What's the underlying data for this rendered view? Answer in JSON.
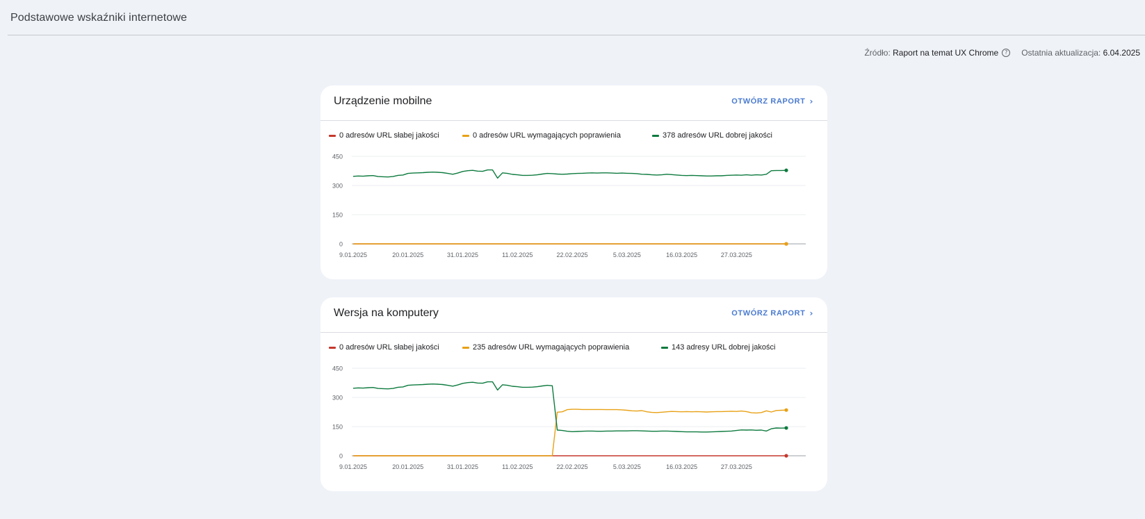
{
  "header": {
    "title": "Podstawowe wskaźniki internetowe",
    "source_label": "Źródło:",
    "source_value": "Raport na temat UX Chrome",
    "updated_label": "Ostatnia aktualizacja:",
    "updated_value": "6.04.2025"
  },
  "colors": {
    "poor": "#c5372c",
    "needs": "#e8a114",
    "good": "#0d7a3e",
    "link": "#4a7bd0"
  },
  "cards": [
    {
      "title": "Urządzenie mobilne",
      "open_label": "OTWÓRZ RAPORT",
      "legend": [
        "0 adresów URL słabej jakości",
        "0 adresów URL wymagających poprawienia",
        "378 adresów URL dobrej jakości"
      ]
    },
    {
      "title": "Wersja na komputery",
      "open_label": "OTWÓRZ RAPORT",
      "legend": [
        "0 adresów URL słabej jakości",
        "235 adresów URL wymagających poprawienia",
        "143 adresy URL dobrej jakości"
      ]
    }
  ],
  "chart_data": [
    {
      "type": "line",
      "x": [
        "9.01.2025",
        "10.01.2025",
        "11.01.2025",
        "12.01.2025",
        "13.01.2025",
        "14.01.2025",
        "15.01.2025",
        "16.01.2025",
        "17.01.2025",
        "18.01.2025",
        "19.01.2025",
        "20.01.2025",
        "21.01.2025",
        "22.01.2025",
        "23.01.2025",
        "24.01.2025",
        "25.01.2025",
        "26.01.2025",
        "27.01.2025",
        "28.01.2025",
        "29.01.2025",
        "30.01.2025",
        "31.01.2025",
        "1.02.2025",
        "2.02.2025",
        "3.02.2025",
        "4.02.2025",
        "5.02.2025",
        "6.02.2025",
        "7.02.2025",
        "8.02.2025",
        "9.02.2025",
        "10.02.2025",
        "11.02.2025",
        "12.02.2025",
        "13.02.2025",
        "14.02.2025",
        "15.02.2025",
        "16.02.2025",
        "17.02.2025",
        "18.02.2025",
        "19.02.2025",
        "20.02.2025",
        "21.02.2025",
        "22.02.2025",
        "23.02.2025",
        "24.02.2025",
        "25.02.2025",
        "26.02.2025",
        "27.02.2025",
        "28.02.2025",
        "1.03.2025",
        "2.03.2025",
        "3.03.2025",
        "4.03.2025",
        "5.03.2025",
        "6.03.2025",
        "7.03.2025",
        "8.03.2025",
        "9.03.2025",
        "10.03.2025",
        "11.03.2025",
        "12.03.2025",
        "13.03.2025",
        "14.03.2025",
        "15.03.2025",
        "16.03.2025",
        "17.03.2025",
        "18.03.2025",
        "19.03.2025",
        "20.03.2025",
        "21.03.2025",
        "22.03.2025",
        "23.03.2025",
        "24.03.2025",
        "25.03.2025",
        "26.03.2025",
        "27.03.2025",
        "28.03.2025",
        "29.03.2025",
        "30.03.2025",
        "31.03.2025",
        "1.04.2025",
        "2.04.2025",
        "3.04.2025",
        "4.04.2025",
        "5.04.2025",
        "6.04.2025"
      ],
      "xticks": [
        "9.01.2025",
        "20.01.2025",
        "31.01.2025",
        "11.02.2025",
        "22.02.2025",
        "5.03.2025",
        "16.03.2025",
        "27.03.2025"
      ],
      "yticks": [
        0,
        150,
        300,
        450
      ],
      "ylim": [
        0,
        450
      ],
      "series": [
        {
          "name": "0 adresów URL słabej jakości",
          "color": "#c5372c",
          "values": [
            0,
            0,
            0,
            0,
            0,
            0,
            0,
            0,
            0,
            0,
            0,
            0,
            0,
            0,
            0,
            0,
            0,
            0,
            0,
            0,
            0,
            0,
            0,
            0,
            0,
            0,
            0,
            0,
            0,
            0,
            0,
            0,
            0,
            0,
            0,
            0,
            0,
            0,
            0,
            0,
            0,
            0,
            0,
            0,
            0,
            0,
            0,
            0,
            0,
            0,
            0,
            0,
            0,
            0,
            0,
            0,
            0,
            0,
            0,
            0,
            0,
            0,
            0,
            0,
            0,
            0,
            0,
            0,
            0,
            0,
            0,
            0,
            0,
            0,
            0,
            0,
            0,
            0,
            0,
            0,
            0,
            0,
            0,
            0,
            0,
            0,
            0,
            0
          ]
        },
        {
          "name": "0 adresów URL wymagających poprawienia",
          "color": "#e8a114",
          "values": [
            0,
            0,
            0,
            0,
            0,
            0,
            0,
            0,
            0,
            0,
            0,
            0,
            0,
            0,
            0,
            0,
            0,
            0,
            0,
            0,
            0,
            0,
            0,
            0,
            0,
            0,
            0,
            0,
            0,
            0,
            0,
            0,
            0,
            0,
            0,
            0,
            0,
            0,
            0,
            0,
            0,
            0,
            0,
            0,
            0,
            0,
            0,
            0,
            0,
            0,
            0,
            0,
            0,
            0,
            0,
            0,
            0,
            0,
            0,
            0,
            0,
            0,
            0,
            0,
            0,
            0,
            0,
            0,
            0,
            0,
            0,
            0,
            0,
            0,
            0,
            0,
            0,
            0,
            0,
            0,
            0,
            0,
            0,
            0,
            0,
            0,
            0,
            0
          ]
        },
        {
          "name": "378 adresów URL dobrej jakości",
          "color": "#0d7a3e",
          "values": [
            347,
            349,
            348,
            350,
            351,
            346,
            345,
            344,
            346,
            352,
            354,
            362,
            364,
            365,
            366,
            368,
            369,
            368,
            366,
            362,
            358,
            364,
            372,
            376,
            378,
            374,
            373,
            380,
            380,
            338,
            365,
            362,
            357,
            355,
            352,
            352,
            353,
            355,
            359,
            362,
            361,
            359,
            358,
            359,
            361,
            362,
            363,
            364,
            365,
            364,
            365,
            365,
            364,
            363,
            364,
            363,
            362,
            361,
            358,
            357,
            355,
            354,
            355,
            358,
            356,
            354,
            352,
            351,
            352,
            351,
            350,
            349,
            349,
            350,
            350,
            352,
            353,
            354,
            353,
            355,
            353,
            355,
            354,
            358,
            376,
            377,
            377,
            378
          ]
        }
      ]
    },
    {
      "type": "line",
      "x": [
        "9.01.2025",
        "10.01.2025",
        "11.01.2025",
        "12.01.2025",
        "13.01.2025",
        "14.01.2025",
        "15.01.2025",
        "16.01.2025",
        "17.01.2025",
        "18.01.2025",
        "19.01.2025",
        "20.01.2025",
        "21.01.2025",
        "22.01.2025",
        "23.01.2025",
        "24.01.2025",
        "25.01.2025",
        "26.01.2025",
        "27.01.2025",
        "28.01.2025",
        "29.01.2025",
        "30.01.2025",
        "31.01.2025",
        "1.02.2025",
        "2.02.2025",
        "3.02.2025",
        "4.02.2025",
        "5.02.2025",
        "6.02.2025",
        "7.02.2025",
        "8.02.2025",
        "9.02.2025",
        "10.02.2025",
        "11.02.2025",
        "12.02.2025",
        "13.02.2025",
        "14.02.2025",
        "15.02.2025",
        "16.02.2025",
        "17.02.2025",
        "18.02.2025",
        "19.02.2025",
        "20.02.2025",
        "21.02.2025",
        "22.02.2025",
        "23.02.2025",
        "24.02.2025",
        "25.02.2025",
        "26.02.2025",
        "27.02.2025",
        "28.02.2025",
        "1.03.2025",
        "2.03.2025",
        "3.03.2025",
        "4.03.2025",
        "5.03.2025",
        "6.03.2025",
        "7.03.2025",
        "8.03.2025",
        "9.03.2025",
        "10.03.2025",
        "11.03.2025",
        "12.03.2025",
        "13.03.2025",
        "14.03.2025",
        "15.03.2025",
        "16.03.2025",
        "17.03.2025",
        "18.03.2025",
        "19.03.2025",
        "20.03.2025",
        "21.03.2025",
        "22.03.2025",
        "23.03.2025",
        "24.03.2025",
        "25.03.2025",
        "26.03.2025",
        "27.03.2025",
        "28.03.2025",
        "29.03.2025",
        "30.03.2025",
        "31.03.2025",
        "1.04.2025",
        "2.04.2025",
        "3.04.2025",
        "4.04.2025",
        "5.04.2025",
        "6.04.2025"
      ],
      "xticks": [
        "9.01.2025",
        "20.01.2025",
        "31.01.2025",
        "11.02.2025",
        "22.02.2025",
        "5.03.2025",
        "16.03.2025",
        "27.03.2025"
      ],
      "yticks": [
        0,
        150,
        300,
        450
      ],
      "ylim": [
        0,
        450
      ],
      "series": [
        {
          "name": "0 adresów URL słabej jakości",
          "color": "#c5372c",
          "values": [
            0,
            0,
            0,
            0,
            0,
            0,
            0,
            0,
            0,
            0,
            0,
            0,
            0,
            0,
            0,
            0,
            0,
            0,
            0,
            0,
            0,
            0,
            0,
            0,
            0,
            0,
            0,
            0,
            0,
            0,
            0,
            0,
            0,
            0,
            0,
            0,
            0,
            0,
            0,
            0,
            0,
            0,
            0,
            0,
            0,
            0,
            0,
            0,
            0,
            0,
            0,
            0,
            0,
            0,
            0,
            0,
            0,
            0,
            0,
            0,
            0,
            0,
            0,
            0,
            0,
            0,
            0,
            0,
            0,
            0,
            0,
            0,
            0,
            0,
            0,
            0,
            0,
            0,
            0,
            0,
            0,
            0,
            0,
            0,
            0,
            0,
            0,
            0
          ]
        },
        {
          "name": "235 adresów URL wymagających poprawienia",
          "color": "#e8a114",
          "values": [
            0,
            0,
            0,
            0,
            0,
            0,
            0,
            0,
            0,
            0,
            0,
            0,
            0,
            0,
            0,
            0,
            0,
            0,
            0,
            0,
            0,
            0,
            0,
            0,
            0,
            0,
            0,
            0,
            0,
            0,
            0,
            0,
            0,
            0,
            0,
            0,
            0,
            0,
            0,
            0,
            0,
            224,
            226,
            237,
            239,
            239,
            238,
            238,
            238,
            238,
            238,
            237,
            237,
            237,
            236,
            234,
            231,
            230,
            232,
            226,
            223,
            222,
            224,
            226,
            228,
            227,
            226,
            227,
            226,
            227,
            226,
            225,
            226,
            227,
            227,
            228,
            229,
            228,
            230,
            227,
            221,
            220,
            222,
            231,
            225,
            233,
            234,
            235
          ]
        },
        {
          "name": "143 adresy URL dobrej jakości",
          "color": "#0d7a3e",
          "values": [
            347,
            349,
            348,
            350,
            351,
            346,
            345,
            344,
            346,
            352,
            354,
            362,
            364,
            365,
            366,
            368,
            369,
            368,
            366,
            362,
            358,
            364,
            372,
            376,
            378,
            374,
            373,
            380,
            380,
            338,
            365,
            362,
            357,
            355,
            352,
            352,
            353,
            355,
            359,
            362,
            360,
            132,
            130,
            126,
            124,
            125,
            126,
            127,
            127,
            126,
            126,
            127,
            127,
            128,
            128,
            128,
            129,
            129,
            128,
            127,
            126,
            126,
            127,
            127,
            126,
            125,
            124,
            123,
            123,
            123,
            122,
            122,
            123,
            124,
            125,
            126,
            127,
            130,
            133,
            132,
            133,
            131,
            132,
            127,
            139,
            143,
            142,
            143
          ]
        }
      ]
    }
  ]
}
